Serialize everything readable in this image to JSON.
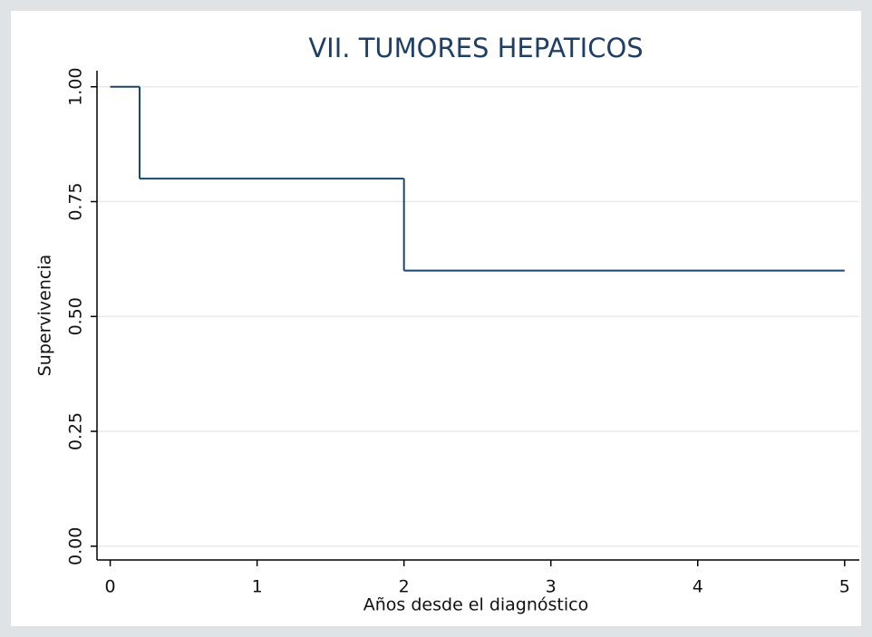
{
  "chart_data": {
    "type": "step",
    "title": "VII. TUMORES HEPATICOS",
    "xlabel": "Años desde el diagnóstico",
    "ylabel": "Supervivencia",
    "series": [
      {
        "color": "#1a476f",
        "x": [
          0,
          0.2,
          2,
          5
        ],
        "values": [
          1,
          0.8,
          0.6,
          0.6
        ]
      }
    ],
    "xlim": [
      -0.09,
      5.1
    ],
    "xticks": [
      0,
      1,
      2,
      3,
      4,
      5
    ],
    "ylim": [
      -0.03,
      1.035
    ],
    "yticks": [
      {
        "value": 0,
        "label": "0.00"
      },
      {
        "value": 0.25,
        "label": "0.25"
      },
      {
        "value": 0.5,
        "label": "0.50"
      },
      {
        "value": 0.75,
        "label": "0.75"
      },
      {
        "value": 1,
        "label": "1.00"
      }
    ],
    "grid": true
  }
}
